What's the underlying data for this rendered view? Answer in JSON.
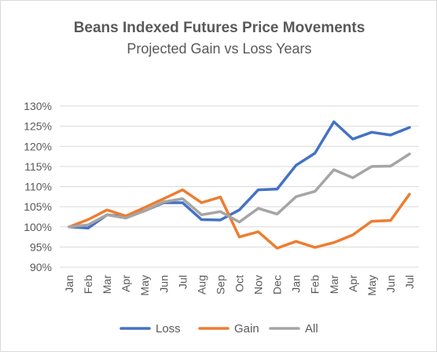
{
  "chart_data": {
    "type": "line",
    "title": "Beans Indexed Futures Price Movements",
    "subtitle": "Projected Gain vs Loss Years",
    "xlabel": "",
    "ylabel": "",
    "categories": [
      "Jan",
      "Feb",
      "Mar",
      "Apr",
      "May",
      "Jun",
      "Jul",
      "Aug",
      "Sep",
      "Oct",
      "Nov",
      "Dec",
      "Jan",
      "Feb",
      "Mar",
      "Apr",
      "May",
      "Jun",
      "Jul"
    ],
    "ylim": [
      0.9,
      1.3
    ],
    "yticks": [
      "130%",
      "125%",
      "120%",
      "115%",
      "110%",
      "105%",
      "100%",
      "95%",
      "90%"
    ],
    "ytick_values": [
      1.3,
      1.25,
      1.2,
      1.15,
      1.1,
      1.05,
      1.0,
      0.95,
      0.9
    ],
    "grid": true,
    "legend_position": "bottom",
    "series": [
      {
        "name": "Loss",
        "color": "#4472c4",
        "values": [
          1.0,
          0.997,
          1.03,
          1.025,
          1.04,
          1.06,
          1.06,
          1.018,
          1.017,
          1.042,
          1.092,
          1.094,
          1.153,
          1.183,
          1.261,
          1.218,
          1.235,
          1.228,
          1.247
        ]
      },
      {
        "name": "Gain",
        "color": "#ed7d31",
        "values": [
          1.0,
          1.018,
          1.042,
          1.027,
          1.048,
          1.07,
          1.092,
          1.06,
          1.074,
          0.975,
          0.988,
          0.947,
          0.964,
          0.949,
          0.961,
          0.98,
          1.014,
          1.016,
          1.081
        ]
      },
      {
        "name": "All",
        "color": "#a5a5a5",
        "values": [
          1.0,
          1.005,
          1.03,
          1.022,
          1.04,
          1.062,
          1.07,
          1.03,
          1.038,
          1.012,
          1.046,
          1.032,
          1.075,
          1.088,
          1.142,
          1.122,
          1.15,
          1.151,
          1.181
        ]
      }
    ]
  }
}
